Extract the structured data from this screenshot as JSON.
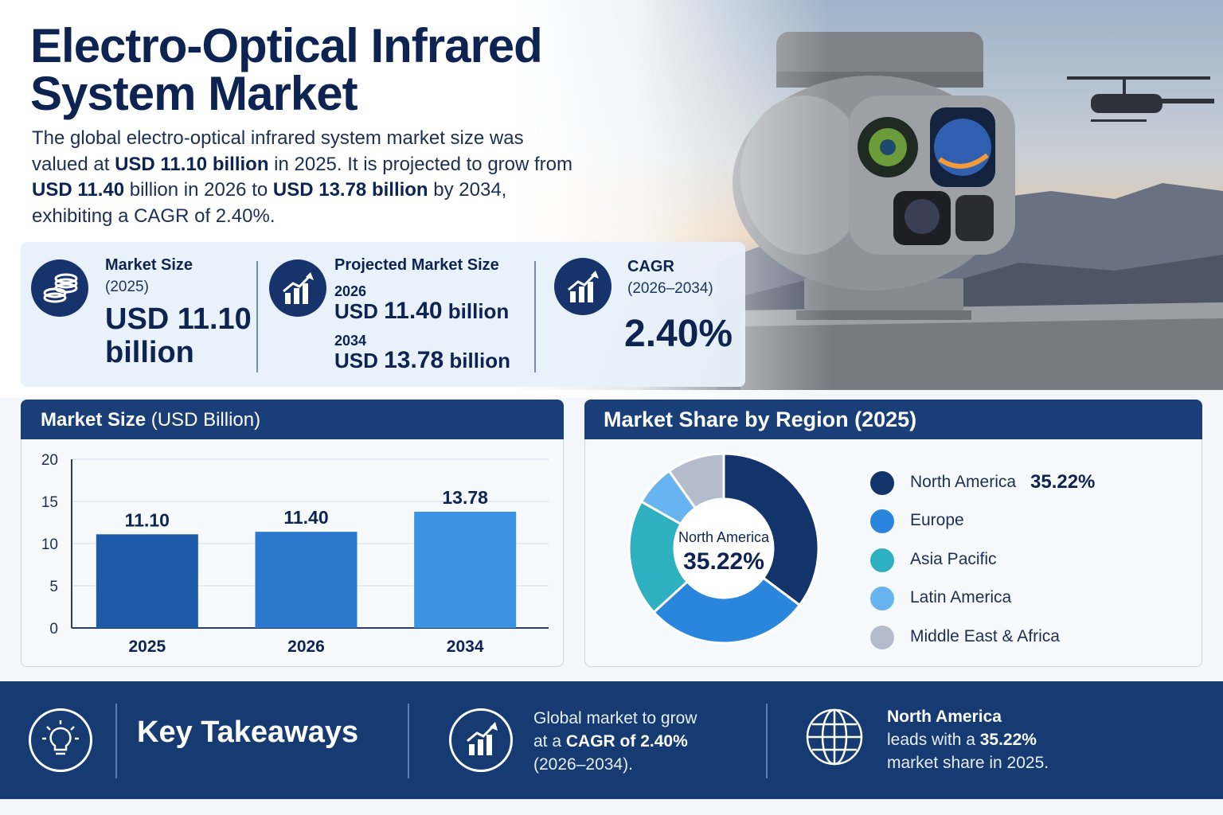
{
  "header": {
    "title_line1": "Electro-Optical Infrared",
    "title_line2": "System Market"
  },
  "intro": {
    "p1": "The global electro-optical infrared system market size was valued at ",
    "b1": "USD 11.10 billion",
    "p2": " in 2025. It is projected to grow from ",
    "b2": "USD 11.40",
    "p3": " billion in 2026 to ",
    "b3": "USD 13.78 billion",
    "p4": " by 2034, exhibiting a CAGR of 2.40%."
  },
  "stats": {
    "market_size": {
      "label": "Market Size",
      "year": "(2025)",
      "value_line1": "USD 11.10",
      "value_line2": "billion"
    },
    "projected": {
      "label": "Projected Market Size",
      "year1": "2026",
      "value1_prefix": "USD ",
      "value1_num": "11.40",
      "value1_suffix": " billion",
      "year2": "2034",
      "value2_prefix": "USD ",
      "value2_num": "13.78",
      "value2_suffix": " billion"
    },
    "cagr": {
      "label": "CAGR",
      "period": "(2026–2034)",
      "value": "2.40%"
    },
    "icons": [
      "coins-icon",
      "growth-chart-icon",
      "growth-chart-icon"
    ]
  },
  "bar_panel": {
    "title_bold": "Market Size",
    "title_rest": " (USD Billion)"
  },
  "donut_panel": {
    "title": "Market Share by Region (2025)",
    "center_label": "North America",
    "center_value": "35.22%"
  },
  "chart_data": [
    {
      "type": "bar",
      "title": "Market Size (USD Billion)",
      "categories": [
        "2025",
        "2026",
        "2034"
      ],
      "values": [
        11.1,
        11.4,
        13.78
      ],
      "data_labels": [
        "11.10",
        "11.40",
        "13.78"
      ],
      "ylim": [
        0,
        20
      ],
      "yticks": [
        "0",
        "5",
        "10",
        "15",
        "20"
      ],
      "grid": true,
      "colors": [
        "#1d5aa8",
        "#2d78cf",
        "#3b93e3"
      ]
    },
    {
      "type": "pie",
      "title": "Market Share by Region (2025)",
      "categories": [
        "North America",
        "Europe",
        "Asia Pacific",
        "Latin America",
        "Middle East & Africa"
      ],
      "values": [
        35.22,
        28,
        20,
        7,
        9.78
      ],
      "labels": [
        "35.22%",
        "",
        "",
        "",
        ""
      ],
      "colors": [
        "#13336b",
        "#2a86dc",
        "#2fb0c1",
        "#68b4f0",
        "#b4bccb"
      ],
      "legend": "right"
    }
  ],
  "takeaways": {
    "title": "Key Takeaways",
    "t1_a": "Global market to grow",
    "t1_b": "at a ",
    "t1_bold": "CAGR of 2.40%",
    "t1_c": "(2026–2034).",
    "t2_bold_a": "North America",
    "t2_b": "leads with a ",
    "t2_bold_b": "35.22%",
    "t2_c": "market share in 2025.",
    "icons": [
      "lightbulb-icon",
      "growth-chart-icon",
      "globe-icon"
    ]
  }
}
